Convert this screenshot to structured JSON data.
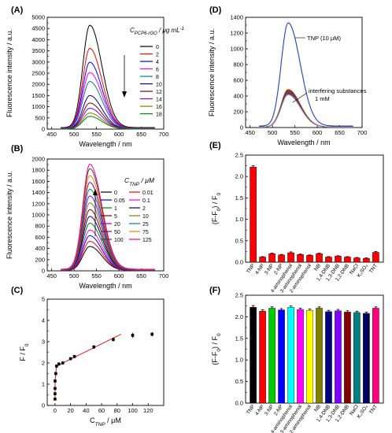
{
  "chart_data": [
    {
      "panel": "A",
      "type": "line",
      "xlabel": "Wavelength / nm",
      "ylabel": "Fluorescence intensity / a.u.",
      "xlim": [
        440,
        700
      ],
      "ylim": [
        0,
        5000
      ],
      "xticks": [
        450,
        500,
        550,
        600,
        650,
        700
      ],
      "yticks": [
        0,
        500,
        1000,
        1500,
        2000,
        2500,
        3000,
        3500,
        4000,
        4500,
        5000
      ],
      "legend_title": "C_PCP6-rGO / μg mL⁻¹",
      "legend_position": "right",
      "arrow": "down",
      "peak_nm": 535,
      "range_nm": [
        470,
        680
      ],
      "series": [
        {
          "name": "0",
          "peak": 4580,
          "color": "#000000"
        },
        {
          "name": "2",
          "peak": 3560,
          "color": "#ff0000"
        },
        {
          "name": "4",
          "peak": 2950,
          "color": "#0000ff"
        },
        {
          "name": "6",
          "peak": 2500,
          "color": "#ff00ff"
        },
        {
          "name": "8",
          "peak": 2100,
          "color": "#008080"
        },
        {
          "name": "10",
          "peak": 1480,
          "color": "#000080"
        },
        {
          "name": "12",
          "peak": 1150,
          "color": "#800000"
        },
        {
          "name": "14",
          "peak": 920,
          "color": "#8000ff"
        },
        {
          "name": "16",
          "peak": 710,
          "color": "#808000"
        },
        {
          "name": "18",
          "peak": 560,
          "color": "#008000"
        }
      ]
    },
    {
      "panel": "B",
      "type": "line",
      "xlabel": "Wavelength / nm",
      "ylabel": "Fluorescence intensity / a.u.",
      "xlim": [
        440,
        700
      ],
      "ylim": [
        0,
        2000
      ],
      "xticks": [
        450,
        500,
        550,
        600,
        650,
        700
      ],
      "yticks": [
        0,
        200,
        400,
        600,
        800,
        1000,
        1200,
        1400,
        1600,
        1800,
        2000
      ],
      "legend_title": "C_TNP / μM",
      "legend_position": "right",
      "arrow": "up",
      "peak_nm": 535,
      "range_nm": [
        470,
        680
      ],
      "series": [
        {
          "name": "0",
          "peak": 430,
          "color": "#000000"
        },
        {
          "name": "0.01",
          "peak": 520,
          "color": "#ff0000"
        },
        {
          "name": "0.05",
          "peak": 620,
          "color": "#0000ff"
        },
        {
          "name": "0.1",
          "peak": 720,
          "color": "#ff00ff"
        },
        {
          "name": "1",
          "peak": 840,
          "color": "#008000"
        },
        {
          "name": "2",
          "peak": 960,
          "color": "#000080"
        },
        {
          "name": "5",
          "peak": 1080,
          "color": "#800000"
        },
        {
          "name": "10",
          "peak": 1200,
          "color": "#808000"
        },
        {
          "name": "20",
          "peak": 1320,
          "color": "#8000ff"
        },
        {
          "name": "25",
          "peak": 1440,
          "color": "#008080"
        },
        {
          "name": "50",
          "peak": 1560,
          "color": "#800080"
        },
        {
          "name": "75",
          "peak": 1680,
          "color": "#ff8000"
        },
        {
          "name": "100",
          "peak": 1800,
          "color": "#404040"
        },
        {
          "name": "125",
          "peak": 1880,
          "color": "#ff0080"
        }
      ]
    },
    {
      "panel": "C",
      "type": "scatter",
      "xlabel": "C_TNP / μM",
      "ylabel": "F / F₀",
      "xlim": [
        -10,
        140
      ],
      "ylim": [
        0,
        5
      ],
      "xticks": [
        0,
        20,
        40,
        60,
        80,
        100,
        120
      ],
      "yticks": [
        0,
        1,
        2,
        3,
        4,
        5
      ],
      "points": [
        {
          "x": 0,
          "y": 0.3,
          "err": 0.07
        },
        {
          "x": 0.01,
          "y": 0.55,
          "err": 0.07
        },
        {
          "x": 0.05,
          "y": 0.8,
          "err": 0.07
        },
        {
          "x": 0.1,
          "y": 1.15,
          "err": 0.08
        },
        {
          "x": 1,
          "y": 1.5,
          "err": 0.08
        },
        {
          "x": 2,
          "y": 1.85,
          "err": 0.08
        },
        {
          "x": 5,
          "y": 1.95,
          "err": 0.08
        },
        {
          "x": 10,
          "y": 2.0,
          "err": 0.08
        },
        {
          "x": 20,
          "y": 2.2,
          "err": 0.08
        },
        {
          "x": 25,
          "y": 2.3,
          "err": 0.08
        },
        {
          "x": 50,
          "y": 2.75,
          "err": 0.09
        },
        {
          "x": 75,
          "y": 3.1,
          "err": 0.09
        },
        {
          "x": 100,
          "y": 3.3,
          "err": 0.12
        },
        {
          "x": 125,
          "y": 3.35,
          "err": 0.1
        }
      ],
      "fit_segments": [
        [
          [
            0,
            0.3
          ],
          [
            0.01,
            0.55
          ],
          [
            0.05,
            0.8
          ],
          [
            0.1,
            1.15
          ],
          [
            1,
            1.5
          ],
          [
            2,
            1.85
          ]
        ],
        [
          [
            2,
            1.85
          ],
          [
            85,
            3.35
          ]
        ]
      ],
      "fit_color": "#e31a1c"
    },
    {
      "panel": "D",
      "type": "line",
      "xlabel": "Wavelength / nm",
      "ylabel": "Fluorescence intensity / a.u.",
      "xlim": [
        440,
        700
      ],
      "ylim": [
        0,
        1400
      ],
      "xticks": [
        450,
        500,
        550,
        600,
        650,
        700
      ],
      "yticks": [
        0,
        200,
        400,
        600,
        800,
        1000,
        1200,
        1400
      ],
      "peak_nm": 535,
      "range_nm": [
        470,
        680
      ],
      "annotations": [
        "TNP (10 μM)",
        "interfering substances",
        "1 mM"
      ],
      "series": [
        {
          "name": "TNP (10 μM)",
          "peak": 1310,
          "color": "#2040c0"
        },
        {
          "name": "interfering substances 1 mM",
          "peaks": [
            480,
            470,
            460,
            455,
            450,
            445,
            440,
            435,
            430,
            425,
            420,
            415,
            410
          ],
          "colors": [
            "#c0a000",
            "#ff0000",
            "#000000",
            "#00a0a0",
            "#8000ff",
            "#808000",
            "#ff00ff",
            "#800000",
            "#008000",
            "#404040",
            "#ff8000",
            "#0000ff",
            "#a0a0a0"
          ]
        }
      ]
    },
    {
      "panel": "E",
      "type": "bar",
      "ylabel": "(F-F₀) / F₀",
      "ylim": [
        0,
        2.5
      ],
      "yticks": [
        0,
        0.5,
        1.0,
        1.5,
        2.0,
        2.5
      ],
      "categories": [
        "TNP",
        "4-NP",
        "3-NP",
        "2-NP",
        "4-aminophenol",
        "3-aminophenol",
        "2-aminophenol",
        "NB",
        "1,4-DNB",
        "1,3-DNB",
        "1,2-DNB",
        "NaCl",
        "K₂SO₄",
        "TNT"
      ],
      "values": [
        2.22,
        0.12,
        0.2,
        0.17,
        0.22,
        0.18,
        0.16,
        0.2,
        0.12,
        0.14,
        0.12,
        0.1,
        0.09,
        0.23
      ],
      "errors": [
        0.03,
        0.01,
        0.01,
        0.01,
        0.02,
        0.01,
        0.01,
        0.01,
        0.01,
        0.01,
        0.01,
        0.01,
        0.01,
        0.02
      ],
      "color": "#ff0000"
    },
    {
      "panel": "F",
      "type": "bar",
      "ylabel": "(F-F₀) / F₀",
      "ylim": [
        0,
        2.5
      ],
      "yticks": [
        0,
        0.5,
        1.0,
        1.5,
        2.0,
        2.5
      ],
      "categories": [
        "TNP",
        "4-NP",
        "3-NP",
        "2-NP",
        "4-aminophenol",
        "3-aminophenol",
        "2-aminophenol",
        "NB",
        "1,4-DNB",
        "1,3-DNB",
        "1,2-DNB",
        "NaCl",
        "K₂SO₄",
        "TNT"
      ],
      "values": [
        2.22,
        2.13,
        2.2,
        2.16,
        2.22,
        2.17,
        2.15,
        2.2,
        2.12,
        2.14,
        2.11,
        2.1,
        2.08,
        2.2
      ],
      "errors": [
        0.04,
        0.03,
        0.03,
        0.03,
        0.03,
        0.03,
        0.03,
        0.03,
        0.03,
        0.03,
        0.03,
        0.03,
        0.03,
        0.03
      ],
      "colors": [
        "#000000",
        "#ff0000",
        "#00cc00",
        "#0000ff",
        "#00ffff",
        "#ff00ff",
        "#ffff00",
        "#808000",
        "#000080",
        "#8000ff",
        "#800000",
        "#008080",
        "#000060",
        "#ff0080"
      ]
    }
  ]
}
